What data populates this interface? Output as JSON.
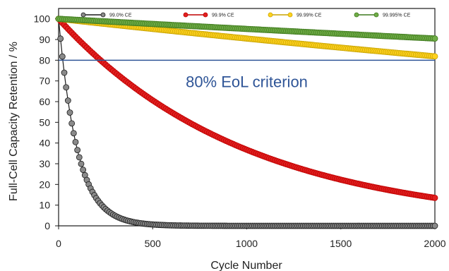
{
  "chart_data": {
    "type": "line",
    "title": "",
    "xlabel": "Cycle Number",
    "ylabel": "Full-Cell Capacity Retention / %",
    "xlim": [
      0,
      2000
    ],
    "ylim": [
      0,
      105
    ],
    "x_ticks": [
      "0",
      "500",
      "1000",
      "1500",
      "2000"
    ],
    "y_ticks": [
      "0",
      "10",
      "20",
      "30",
      "40",
      "50",
      "60",
      "70",
      "80",
      "90",
      "100"
    ],
    "grid": false,
    "legend_position": "top",
    "marker_every_cycles": 10,
    "series": [
      {
        "name": "99.0% CE",
        "ce": 0.99,
        "color": "#1a1a1a",
        "marker_fill": "#8a8a8a",
        "points": [
          [
            0,
            100
          ],
          [
            100,
            36.6
          ],
          [
            200,
            13.4
          ],
          [
            300,
            4.9
          ],
          [
            500,
            0.66
          ],
          [
            1000,
            0.0
          ],
          [
            2000,
            0.0
          ]
        ]
      },
      {
        "name": "99.9% CE",
        "ce": 0.999,
        "color": "#c00000",
        "marker_fill": "#e02020",
        "points": [
          [
            0,
            100
          ],
          [
            200,
            81.9
          ],
          [
            500,
            60.6
          ],
          [
            1000,
            36.8
          ],
          [
            1500,
            22.3
          ],
          [
            2000,
            13.5
          ]
        ]
      },
      {
        "name": "99.99% CE",
        "ce": 0.9999,
        "color": "#c9a400",
        "marker_fill": "#ffd21f",
        "points": [
          [
            0,
            100
          ],
          [
            500,
            95.1
          ],
          [
            1000,
            90.5
          ],
          [
            1500,
            86.1
          ],
          [
            2000,
            81.9
          ]
        ]
      },
      {
        "name": "99.995% CE",
        "ce": 0.99995,
        "color": "#3f7a1e",
        "marker_fill": "#70ad47",
        "points": [
          [
            0,
            100
          ],
          [
            500,
            97.5
          ],
          [
            1000,
            95.1
          ],
          [
            1500,
            92.8
          ],
          [
            2000,
            90.5
          ]
        ]
      }
    ],
    "reference_line": {
      "y": 80,
      "label": "80% EoL criterion",
      "color": "#2f5597"
    }
  }
}
